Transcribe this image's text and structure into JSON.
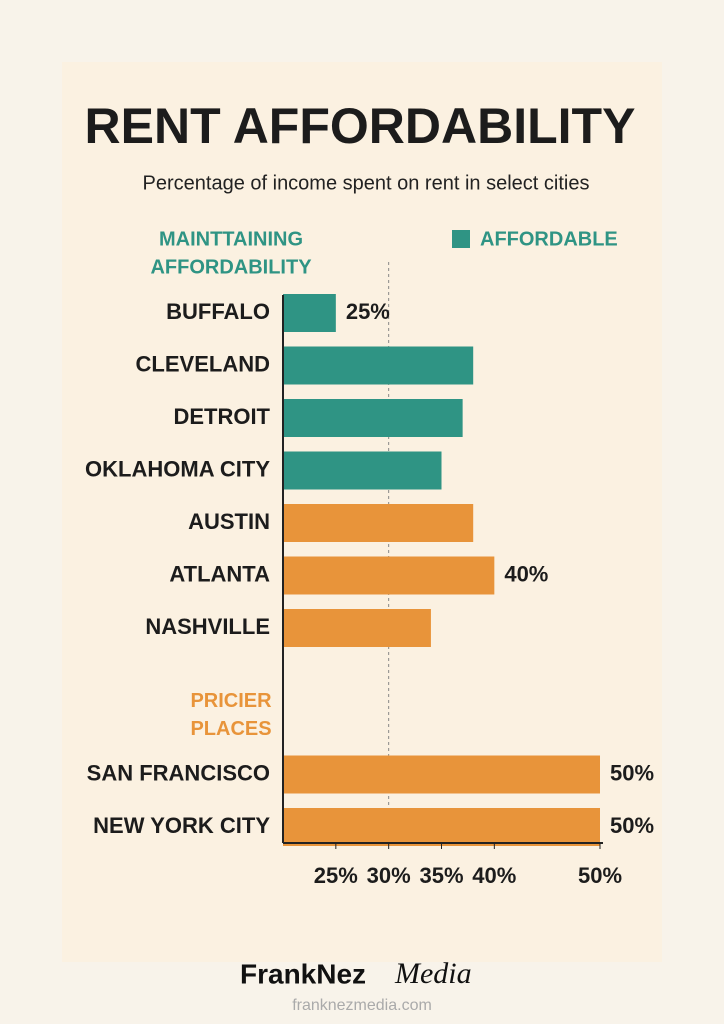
{
  "chart_data": {
    "type": "bar",
    "orientation": "horizontal",
    "title": "RENT AFFORDABILITY",
    "subtitle": "Percentage of income spent on rent in select cities",
    "legend": {
      "label": "AFFORDABLE",
      "color": "#2f9484",
      "position": "top-right"
    },
    "groups": [
      {
        "label": [
          "MAINTTAINING",
          "AFFORDABILITY"
        ],
        "color": "#2f9484",
        "categories": [
          "BUFFALO",
          "CLEVELAND",
          "DETROIT",
          "OKLAHOMA CITY"
        ],
        "values": [
          25,
          38,
          37,
          35
        ],
        "value_labels": [
          "25%",
          null,
          null,
          null
        ]
      },
      {
        "label": null,
        "color": "#e8943a",
        "categories": [
          "AUSTIN",
          "ATLANTA",
          "NASHVILLE"
        ],
        "values": [
          38,
          40,
          34
        ],
        "value_labels": [
          null,
          "40%",
          null
        ]
      },
      {
        "label": [
          "PRICIER",
          "PLACES"
        ],
        "color": "#e8943a",
        "categories": [
          "SAN FRANCISCO",
          "NEW YORK CITY"
        ],
        "values": [
          50,
          50
        ],
        "value_labels": [
          "50%",
          "50%"
        ]
      }
    ],
    "xlim": [
      20,
      50
    ],
    "xticks": [
      {
        "value": 25,
        "label": "25%"
      },
      {
        "value": 30,
        "label": "30%"
      },
      {
        "value": 35,
        "label": "35%"
      },
      {
        "value": 40,
        "label": "40%"
      },
      {
        "value": 50,
        "label": "50%"
      }
    ],
    "reference_line": 30,
    "brand": {
      "name": "FrankNez",
      "suffix": "Media",
      "url": "franknezmedia.com"
    }
  }
}
